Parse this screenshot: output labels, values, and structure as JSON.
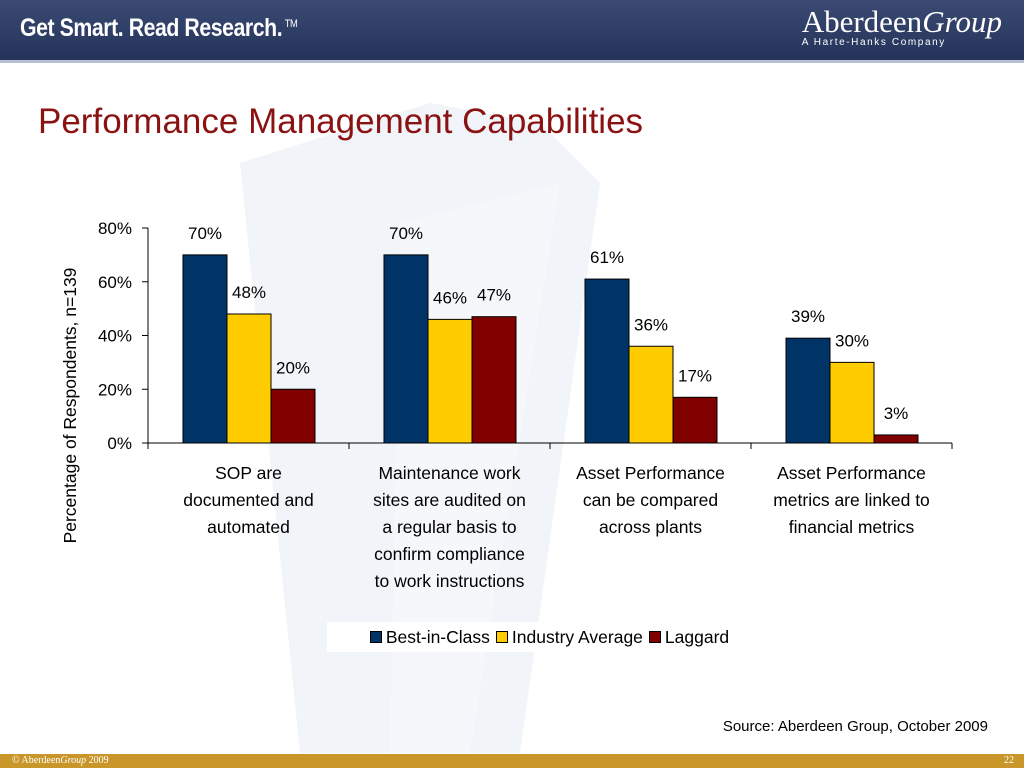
{
  "header": {
    "tagline": "Get Smart. Read Research.",
    "trademark": "TM",
    "logo_main": "Aberdeen",
    "logo_italic": "Group",
    "logo_sub": "A Harte-Hanks Company"
  },
  "slide_title": "Performance Management Capabilities",
  "chart_data": {
    "type": "bar",
    "title": "",
    "ylabel": "Percentage of Respondents, n=139",
    "xlabel": "",
    "ylim": [
      0,
      80
    ],
    "yticks": [
      "0%",
      "20%",
      "40%",
      "60%",
      "80%"
    ],
    "ytick_values": [
      0,
      20,
      40,
      60,
      80
    ],
    "categories": [
      [
        "SOP are",
        "documented and",
        "automated"
      ],
      [
        "Maintenance work",
        "sites are audited on",
        "a regular basis to",
        "confirm compliance",
        "to work instructions"
      ],
      [
        "Asset Performance",
        "can be compared",
        "across plants"
      ],
      [
        "Asset Performance",
        "metrics are linked to",
        "financial metrics"
      ]
    ],
    "series": [
      {
        "name": "Best-in-Class",
        "color": "#003366",
        "values": [
          70,
          70,
          61,
          39
        ],
        "labels": [
          "70%",
          "70%",
          "61%",
          "39%"
        ]
      },
      {
        "name": "Industry Average",
        "color": "#ffcc00",
        "values": [
          48,
          46,
          36,
          30
        ],
        "labels": [
          "48%",
          "46%",
          "36%",
          "30%"
        ]
      },
      {
        "name": "Laggard",
        "color": "#800000",
        "values": [
          20,
          47,
          17,
          3
        ],
        "labels": [
          "20%",
          "47%",
          "17%",
          "3%"
        ]
      }
    ],
    "legend_position": "bottom",
    "grid": false
  },
  "source": "Source: Aberdeen Group, October 2009",
  "footer": {
    "copyright_prefix": "© Aberdeen",
    "copyright_italic": "Group",
    "copyright_year": " 2009",
    "page_number": "22"
  }
}
